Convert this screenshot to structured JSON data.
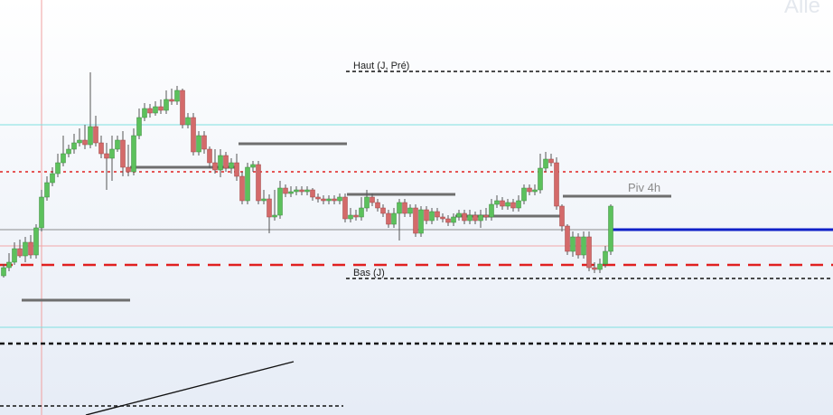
{
  "colors": {
    "bg_top": "#ffffff",
    "bg_bottom": "#e6ecf6",
    "bull": "#5cc15c",
    "bear": "#d46a6a",
    "wick": "#555555",
    "cyan": "#7fe0e0",
    "red_dot": "#e02020",
    "pink": "#f2a8a8",
    "blue": "#1020c8",
    "gray": "#8c8c8c",
    "dark_gray": "#6e6e6e",
    "black": "#111111"
  },
  "watermark": "Alle",
  "chart_data": {
    "type": "candlestick",
    "y_range": [
      0,
      459
    ],
    "hlines": [
      {
        "name": "cyan-upper",
        "y": 138,
        "style": "solid",
        "color": "cyan"
      },
      {
        "name": "red-dotted",
        "y": 190,
        "style": "dotted",
        "color": "red_dot"
      },
      {
        "name": "gray-mid",
        "y": 254,
        "style": "solid",
        "color": "gray"
      },
      {
        "name": "pink",
        "y": 272,
        "style": "solid",
        "color": "pink"
      },
      {
        "name": "red-dashed",
        "y": 293,
        "style": "dashed",
        "color": "red_dot"
      },
      {
        "name": "cyan-lower",
        "y": 362,
        "style": "solid",
        "color": "cyan"
      },
      {
        "name": "black-dashed",
        "y": 380,
        "style": "dashed",
        "color": "black"
      }
    ],
    "levels": [
      {
        "name": "haut-j-pre",
        "label": "Haut (J, Pré)",
        "y": 79,
        "x_start": 383,
        "style": "dashed"
      },
      {
        "name": "bas-j",
        "label": "Bas (J)",
        "y": 308,
        "x_start": 383,
        "style": "dashed"
      },
      {
        "name": "piv-4h",
        "label": "Piv 4h",
        "y": 217,
        "x_start": 623,
        "x_end": 743,
        "style": "solid"
      }
    ],
    "candles": [
      [
        4,
        305,
        296,
        307,
        292
      ],
      [
        10,
        296,
        290,
        300,
        280
      ],
      [
        16,
        290,
        275,
        293,
        268
      ],
      [
        22,
        275,
        283,
        285,
        265
      ],
      [
        28,
        283,
        268,
        290,
        262
      ],
      [
        34,
        268,
        282,
        286,
        260
      ],
      [
        40,
        282,
        252,
        286,
        248
      ],
      [
        46,
        252,
        218,
        256,
        210
      ],
      [
        52,
        218,
        202,
        222,
        195
      ],
      [
        58,
        202,
        192,
        206,
        185
      ],
      [
        64,
        192,
        180,
        196,
        170
      ],
      [
        70,
        180,
        170,
        184,
        150
      ],
      [
        76,
        170,
        165,
        174,
        160
      ],
      [
        82,
        165,
        158,
        170,
        148
      ],
      [
        88,
        158,
        155,
        162,
        142
      ],
      [
        94,
        155,
        160,
        165,
        138
      ],
      [
        100,
        160,
        140,
        164,
        80
      ],
      [
        106,
        140,
        158,
        162,
        128
      ],
      [
        112,
        158,
        170,
        175,
        150
      ],
      [
        118,
        170,
        175,
        210,
        158
      ],
      [
        124,
        175,
        165,
        200,
        150
      ],
      [
        130,
        165,
        155,
        168,
        150
      ],
      [
        136,
        155,
        185,
        195,
        145
      ],
      [
        142,
        185,
        190,
        195,
        160
      ],
      [
        148,
        190,
        150,
        194,
        142
      ],
      [
        154,
        150,
        130,
        154,
        120
      ],
      [
        160,
        130,
        120,
        134,
        114
      ],
      [
        166,
        120,
        125,
        130,
        115
      ],
      [
        172,
        125,
        118,
        128,
        112
      ],
      [
        178,
        118,
        122,
        126,
        110
      ],
      [
        184,
        122,
        110,
        126,
        100
      ],
      [
        190,
        110,
        112,
        116,
        98
      ],
      [
        196,
        112,
        100,
        116,
        95
      ],
      [
        202,
        100,
        138,
        142,
        98
      ],
      [
        208,
        138,
        130,
        142,
        125
      ],
      [
        214,
        130,
        168,
        172,
        125
      ],
      [
        220,
        168,
        150,
        172,
        145
      ],
      [
        226,
        150,
        165,
        170,
        145
      ],
      [
        232,
        165,
        180,
        186,
        162
      ],
      [
        238,
        180,
        188,
        192,
        165
      ],
      [
        244,
        188,
        172,
        196,
        165
      ],
      [
        250,
        172,
        186,
        190,
        168
      ],
      [
        256,
        186,
        180,
        192,
        175
      ],
      [
        262,
        180,
        195,
        200,
        170
      ],
      [
        268,
        195,
        222,
        226,
        190
      ],
      [
        274,
        222,
        185,
        226,
        180
      ],
      [
        280,
        185,
        182,
        190,
        178
      ],
      [
        286,
        182,
        222,
        226,
        178
      ],
      [
        292,
        222,
        220,
        226,
        210
      ],
      [
        298,
        220,
        240,
        258,
        215
      ],
      [
        304,
        240,
        238,
        244,
        210
      ],
      [
        310,
        238,
        208,
        242,
        200
      ],
      [
        316,
        208,
        214,
        218,
        204
      ],
      [
        322,
        214,
        212,
        218,
        206
      ],
      [
        328,
        212,
        210,
        216,
        206
      ],
      [
        334,
        210,
        212,
        216,
        206
      ],
      [
        340,
        212,
        210,
        216,
        206
      ],
      [
        346,
        210,
        218,
        222,
        208
      ],
      [
        352,
        218,
        220,
        224,
        214
      ],
      [
        358,
        220,
        222,
        226,
        216
      ],
      [
        364,
        222,
        220,
        226,
        216
      ],
      [
        370,
        220,
        222,
        226,
        216
      ],
      [
        376,
        222,
        218,
        226,
        214
      ],
      [
        382,
        218,
        242,
        246,
        214
      ],
      [
        388,
        242,
        238,
        246,
        230
      ],
      [
        394,
        238,
        240,
        244,
        232
      ],
      [
        400,
        240,
        230,
        244,
        218
      ],
      [
        406,
        230,
        218,
        234,
        210
      ],
      [
        412,
        218,
        224,
        228,
        214
      ],
      [
        418,
        224,
        230,
        234,
        220
      ],
      [
        424,
        230,
        236,
        240,
        226
      ],
      [
        430,
        236,
        248,
        252,
        232
      ],
      [
        436,
        248,
        236,
        252,
        230
      ],
      [
        442,
        236,
        224,
        266,
        220
      ],
      [
        448,
        224,
        236,
        240,
        220
      ],
      [
        454,
        236,
        230,
        240,
        226
      ],
      [
        460,
        230,
        258,
        262,
        226
      ],
      [
        466,
        258,
        232,
        262,
        228
      ],
      [
        472,
        232,
        244,
        248,
        228
      ],
      [
        478,
        244,
        234,
        248,
        230
      ],
      [
        484,
        234,
        240,
        244,
        230
      ],
      [
        490,
        240,
        242,
        246,
        236
      ],
      [
        496,
        242,
        246,
        250,
        238
      ],
      [
        502,
        246,
        240,
        250,
        236
      ],
      [
        508,
        240,
        236,
        244,
        232
      ],
      [
        514,
        236,
        244,
        248,
        232
      ],
      [
        520,
        244,
        238,
        248,
        232
      ],
      [
        526,
        238,
        244,
        248,
        234
      ],
      [
        532,
        244,
        238,
        252,
        232
      ],
      [
        538,
        238,
        240,
        244,
        230
      ],
      [
        544,
        240,
        226,
        244,
        220
      ],
      [
        550,
        226,
        222,
        230,
        216
      ],
      [
        556,
        222,
        228,
        232,
        218
      ],
      [
        562,
        228,
        224,
        232,
        220
      ],
      [
        568,
        224,
        230,
        234,
        220
      ],
      [
        574,
        230,
        222,
        234,
        216
      ],
      [
        580,
        222,
        208,
        226,
        204
      ],
      [
        586,
        208,
        212,
        216,
        204
      ],
      [
        592,
        212,
        210,
        216,
        204
      ],
      [
        598,
        210,
        186,
        214,
        170
      ],
      [
        604,
        186,
        176,
        190,
        168
      ],
      [
        610,
        176,
        180,
        184,
        170
      ],
      [
        616,
        180,
        228,
        232,
        174
      ],
      [
        622,
        228,
        250,
        256,
        226
      ],
      [
        628,
        250,
        278,
        282,
        248
      ],
      [
        634,
        278,
        262,
        284,
        256
      ],
      [
        640,
        262,
        282,
        286,
        258
      ],
      [
        646,
        282,
        262,
        286,
        256
      ],
      [
        652,
        262,
        296,
        300,
        256
      ],
      [
        658,
        296,
        298,
        302,
        290
      ],
      [
        664,
        298,
        292,
        302,
        286
      ],
      [
        670,
        292,
        278,
        296,
        272
      ],
      [
        676,
        278,
        228,
        282,
        226
      ]
    ]
  }
}
